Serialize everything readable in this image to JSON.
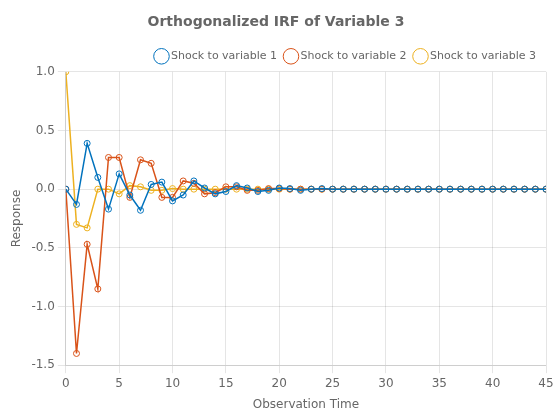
{
  "chart_data": {
    "type": "line",
    "title": "Orthogonalized IRF of Variable 3",
    "xlabel": "Observation Time",
    "ylabel": "Response",
    "x": [
      0,
      1,
      2,
      3,
      4,
      5,
      6,
      7,
      8,
      9,
      10,
      11,
      12,
      13,
      14,
      15,
      16,
      17,
      18,
      19,
      20,
      21,
      22,
      23,
      24,
      25,
      26,
      27,
      28,
      29,
      30,
      31,
      32,
      33,
      34,
      35,
      36,
      37,
      38,
      39,
      40,
      41,
      42,
      43,
      44,
      45
    ],
    "series": [
      {
        "name": "Shock to variable 1",
        "color": "#0072BD",
        "marker": "circle",
        "values": [
          0.0,
          -0.13,
          0.39,
          0.1,
          -0.17,
          0.13,
          -0.05,
          -0.18,
          0.04,
          0.06,
          -0.1,
          -0.05,
          0.07,
          0.01,
          -0.04,
          -0.02,
          0.03,
          0.01,
          -0.02,
          -0.01,
          0.01,
          0.005,
          -0.01,
          0.0,
          0.005,
          0.0,
          0.0,
          0.0,
          0.0,
          0.0,
          0.0,
          0.0,
          0.0,
          0.0,
          0.0,
          0.0,
          0.0,
          0.0,
          0.0,
          0.0,
          0.0,
          0.0,
          0.0,
          0.0,
          0.0,
          0.0
        ]
      },
      {
        "name": "Shock to variable 2",
        "color": "#D95319",
        "marker": "circle",
        "values": [
          0.0,
          -1.4,
          -0.47,
          -0.85,
          0.27,
          0.27,
          -0.07,
          0.25,
          0.22,
          -0.07,
          -0.07,
          0.07,
          0.05,
          -0.04,
          -0.03,
          0.02,
          0.02,
          -0.01,
          -0.01,
          0.005,
          0.005,
          0.0,
          0.0,
          0.0,
          0.0,
          0.0,
          0.0,
          0.0,
          0.0,
          0.0,
          0.0,
          0.0,
          0.0,
          0.0,
          0.0,
          0.0,
          0.0,
          0.0,
          0.0,
          0.0,
          0.0,
          0.0,
          0.0,
          0.0,
          0.0,
          0.0
        ]
      },
      {
        "name": "Shock to variable 3",
        "color": "#EDB120",
        "marker": "circle",
        "values": [
          1.0,
          -0.3,
          -0.33,
          0.0,
          0.0,
          -0.04,
          0.03,
          0.02,
          -0.01,
          -0.01,
          0.005,
          0.0,
          0.0,
          0.0,
          0.0,
          0.0,
          0.0,
          0.0,
          0.0,
          0.0,
          0.0,
          0.0,
          0.0,
          0.0,
          0.0,
          0.0,
          0.0,
          0.0,
          0.0,
          0.0,
          0.0,
          0.0,
          0.0,
          0.0,
          0.0,
          0.0,
          0.0,
          0.0,
          0.0,
          0.0,
          0.0,
          0.0,
          0.0,
          0.0,
          0.0,
          0.0
        ]
      }
    ],
    "xlim": [
      0,
      45
    ],
    "ylim": [
      -1.5,
      1.0
    ],
    "xticks": [
      0,
      5,
      10,
      15,
      20,
      25,
      30,
      35,
      40,
      45
    ],
    "yticks": [
      -1.5,
      {
        "value": -1.0,
        "label": "-1.0"
      },
      -0.5,
      {
        "value": 0.0,
        "label": "0.0"
      },
      0.5,
      {
        "value": 1.0,
        "label": "1.0"
      }
    ],
    "grid": true,
    "legend": "upper right"
  }
}
